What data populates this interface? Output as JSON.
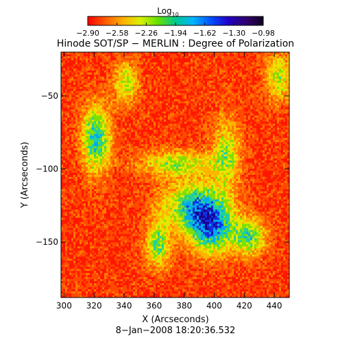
{
  "colorbar": {
    "label": "Log",
    "label_subscript": "10",
    "ticks": [
      "−2.90",
      "−2.58",
      "−2.26",
      "−1.94",
      "−1.62",
      "−1.30",
      "−0.98"
    ],
    "colors": [
      "#ff0000",
      "#ff5a00",
      "#ffb000",
      "#d8f000",
      "#66e000",
      "#00c890",
      "#00b4ff",
      "#0050ff",
      "#2000c8",
      "#300070",
      "#100020"
    ]
  },
  "title": "Hinode SOT/SP − MERLIN : Degree of Polarization",
  "xaxis": {
    "label": "X (Arcseconds)",
    "ticks": [
      "300",
      "320",
      "340",
      "360",
      "380",
      "400",
      "420",
      "440"
    ],
    "range": [
      298,
      450
    ]
  },
  "yaxis": {
    "label": "Y (Arcseconds)",
    "ticks": [
      "−50",
      "−100",
      "−150"
    ],
    "range": [
      -188,
      -20
    ]
  },
  "timestamp": "8−Jan−2008 18:20:36.532",
  "map_palette": [
    "#ff1800",
    "#ff4a00",
    "#ff7a00",
    "#ffb400",
    "#e6e600",
    "#7fe000",
    "#1fd0a0",
    "#00a8f0",
    "#1030e0",
    "#180090"
  ]
}
